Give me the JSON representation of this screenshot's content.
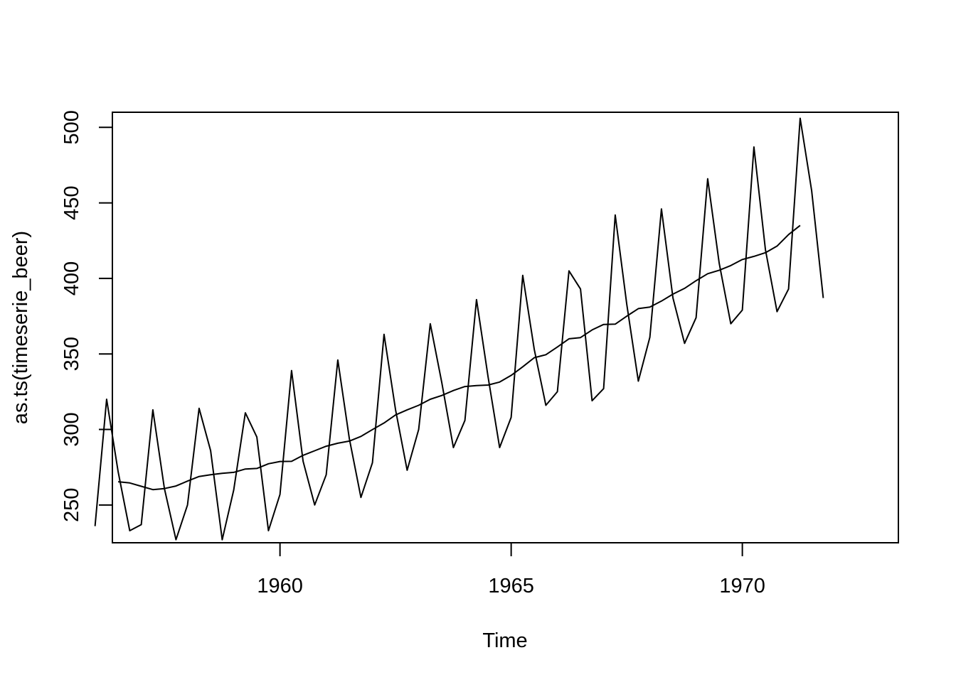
{
  "chart_data": {
    "type": "line",
    "title": "",
    "xlabel": "Time",
    "ylabel": "as.ts(timeserie_beer)",
    "xlim": [
      1956.375,
      1973.375
    ],
    "ylim": [
      225,
      510
    ],
    "x_ticks": [
      1960,
      1965,
      1970
    ],
    "x_tick_labels": [
      "1960",
      "1965",
      "1970"
    ],
    "y_ticks": [
      250,
      300,
      350,
      400,
      450,
      500
    ],
    "y_tick_labels": [
      "250",
      "300",
      "350",
      "400",
      "450",
      "500"
    ],
    "grid": false,
    "legend": "none",
    "series": [
      {
        "start": 1956.0,
        "frequency": 4,
        "values": [
          236,
          320,
          272,
          233,
          237,
          313,
          261,
          227,
          250,
          314,
          286,
          227,
          260,
          311,
          295,
          233,
          257,
          339,
          279,
          250,
          270,
          346,
          294,
          255,
          278,
          363,
          313,
          273,
          300,
          370,
          331,
          288,
          306,
          386,
          335,
          288,
          308,
          402,
          353,
          316,
          325,
          405,
          393,
          319,
          327,
          442,
          383,
          332,
          361,
          446,
          387,
          357,
          374,
          466,
          410,
          370,
          379,
          487,
          419,
          378,
          393,
          506,
          458,
          387
        ]
      },
      {
        "start": 1956.5,
        "frequency": 4,
        "values": [
          265.4,
          264.6,
          262.4,
          260.2,
          260.9,
          262.6,
          265.8,
          268.9,
          270.0,
          271.0,
          271.6,
          273.8,
          274.2,
          277.3,
          278.8,
          278.9,
          282.9,
          285.9,
          288.9,
          290.9,
          292.3,
          295.4,
          299.9,
          304.3,
          309.6,
          313.0,
          316.0,
          320.0,
          322.5,
          325.8,
          328.4,
          329.1,
          329.4,
          331.4,
          335.8,
          341.5,
          347.5,
          349.5,
          354.6,
          360.0,
          360.8,
          365.9,
          369.5,
          369.7,
          375.0,
          380.0,
          381.0,
          385.0,
          389.6,
          393.4,
          398.5,
          403.1,
          405.4,
          408.5,
          412.5,
          414.6,
          417.0,
          421.4,
          429.0,
          435.1
        ]
      }
    ]
  }
}
